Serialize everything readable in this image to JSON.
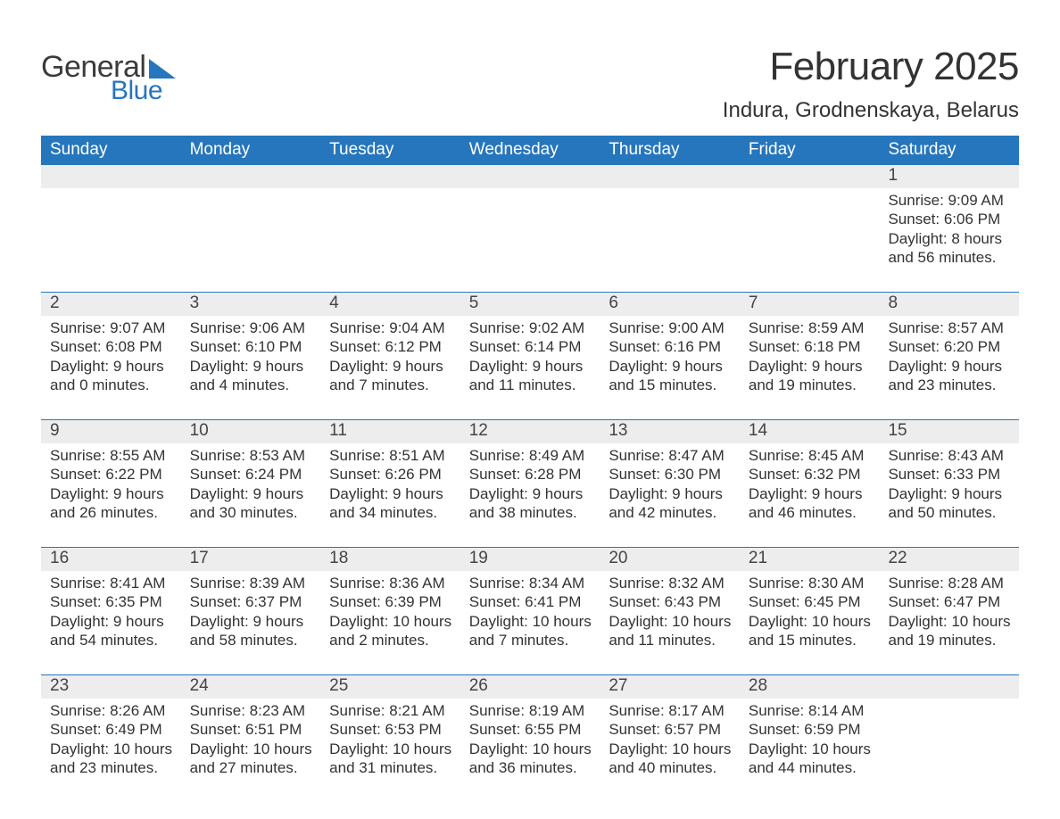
{
  "logo": {
    "text1": "General",
    "text2": "Blue",
    "accent_color": "#2676bd"
  },
  "header": {
    "month_title": "February 2025",
    "location": "Indura, Grodnenskaya, Belarus"
  },
  "colors": {
    "header_bar": "#2676bd",
    "daynum_bg": "#ededed",
    "text": "#333333",
    "background": "#ffffff"
  },
  "typography": {
    "month_title_fontsize": 44,
    "location_fontsize": 24,
    "weekday_fontsize": 19,
    "daynum_fontsize": 19,
    "detail_fontsize": 17
  },
  "weekdays": [
    "Sunday",
    "Monday",
    "Tuesday",
    "Wednesday",
    "Thursday",
    "Friday",
    "Saturday"
  ],
  "weeks": [
    [
      {
        "day": "",
        "sunrise": "",
        "sunset": "",
        "daylight": ""
      },
      {
        "day": "",
        "sunrise": "",
        "sunset": "",
        "daylight": ""
      },
      {
        "day": "",
        "sunrise": "",
        "sunset": "",
        "daylight": ""
      },
      {
        "day": "",
        "sunrise": "",
        "sunset": "",
        "daylight": ""
      },
      {
        "day": "",
        "sunrise": "",
        "sunset": "",
        "daylight": ""
      },
      {
        "day": "",
        "sunrise": "",
        "sunset": "",
        "daylight": ""
      },
      {
        "day": "1",
        "sunrise": "Sunrise: 9:09 AM",
        "sunset": "Sunset: 6:06 PM",
        "daylight": "Daylight: 8 hours and 56 minutes."
      }
    ],
    [
      {
        "day": "2",
        "sunrise": "Sunrise: 9:07 AM",
        "sunset": "Sunset: 6:08 PM",
        "daylight": "Daylight: 9 hours and 0 minutes."
      },
      {
        "day": "3",
        "sunrise": "Sunrise: 9:06 AM",
        "sunset": "Sunset: 6:10 PM",
        "daylight": "Daylight: 9 hours and 4 minutes."
      },
      {
        "day": "4",
        "sunrise": "Sunrise: 9:04 AM",
        "sunset": "Sunset: 6:12 PM",
        "daylight": "Daylight: 9 hours and 7 minutes."
      },
      {
        "day": "5",
        "sunrise": "Sunrise: 9:02 AM",
        "sunset": "Sunset: 6:14 PM",
        "daylight": "Daylight: 9 hours and 11 minutes."
      },
      {
        "day": "6",
        "sunrise": "Sunrise: 9:00 AM",
        "sunset": "Sunset: 6:16 PM",
        "daylight": "Daylight: 9 hours and 15 minutes."
      },
      {
        "day": "7",
        "sunrise": "Sunrise: 8:59 AM",
        "sunset": "Sunset: 6:18 PM",
        "daylight": "Daylight: 9 hours and 19 minutes."
      },
      {
        "day": "8",
        "sunrise": "Sunrise: 8:57 AM",
        "sunset": "Sunset: 6:20 PM",
        "daylight": "Daylight: 9 hours and 23 minutes."
      }
    ],
    [
      {
        "day": "9",
        "sunrise": "Sunrise: 8:55 AM",
        "sunset": "Sunset: 6:22 PM",
        "daylight": "Daylight: 9 hours and 26 minutes."
      },
      {
        "day": "10",
        "sunrise": "Sunrise: 8:53 AM",
        "sunset": "Sunset: 6:24 PM",
        "daylight": "Daylight: 9 hours and 30 minutes."
      },
      {
        "day": "11",
        "sunrise": "Sunrise: 8:51 AM",
        "sunset": "Sunset: 6:26 PM",
        "daylight": "Daylight: 9 hours and 34 minutes."
      },
      {
        "day": "12",
        "sunrise": "Sunrise: 8:49 AM",
        "sunset": "Sunset: 6:28 PM",
        "daylight": "Daylight: 9 hours and 38 minutes."
      },
      {
        "day": "13",
        "sunrise": "Sunrise: 8:47 AM",
        "sunset": "Sunset: 6:30 PM",
        "daylight": "Daylight: 9 hours and 42 minutes."
      },
      {
        "day": "14",
        "sunrise": "Sunrise: 8:45 AM",
        "sunset": "Sunset: 6:32 PM",
        "daylight": "Daylight: 9 hours and 46 minutes."
      },
      {
        "day": "15",
        "sunrise": "Sunrise: 8:43 AM",
        "sunset": "Sunset: 6:33 PM",
        "daylight": "Daylight: 9 hours and 50 minutes."
      }
    ],
    [
      {
        "day": "16",
        "sunrise": "Sunrise: 8:41 AM",
        "sunset": "Sunset: 6:35 PM",
        "daylight": "Daylight: 9 hours and 54 minutes."
      },
      {
        "day": "17",
        "sunrise": "Sunrise: 8:39 AM",
        "sunset": "Sunset: 6:37 PM",
        "daylight": "Daylight: 9 hours and 58 minutes."
      },
      {
        "day": "18",
        "sunrise": "Sunrise: 8:36 AM",
        "sunset": "Sunset: 6:39 PM",
        "daylight": "Daylight: 10 hours and 2 minutes."
      },
      {
        "day": "19",
        "sunrise": "Sunrise: 8:34 AM",
        "sunset": "Sunset: 6:41 PM",
        "daylight": "Daylight: 10 hours and 7 minutes."
      },
      {
        "day": "20",
        "sunrise": "Sunrise: 8:32 AM",
        "sunset": "Sunset: 6:43 PM",
        "daylight": "Daylight: 10 hours and 11 minutes."
      },
      {
        "day": "21",
        "sunrise": "Sunrise: 8:30 AM",
        "sunset": "Sunset: 6:45 PM",
        "daylight": "Daylight: 10 hours and 15 minutes."
      },
      {
        "day": "22",
        "sunrise": "Sunrise: 8:28 AM",
        "sunset": "Sunset: 6:47 PM",
        "daylight": "Daylight: 10 hours and 19 minutes."
      }
    ],
    [
      {
        "day": "23",
        "sunrise": "Sunrise: 8:26 AM",
        "sunset": "Sunset: 6:49 PM",
        "daylight": "Daylight: 10 hours and 23 minutes."
      },
      {
        "day": "24",
        "sunrise": "Sunrise: 8:23 AM",
        "sunset": "Sunset: 6:51 PM",
        "daylight": "Daylight: 10 hours and 27 minutes."
      },
      {
        "day": "25",
        "sunrise": "Sunrise: 8:21 AM",
        "sunset": "Sunset: 6:53 PM",
        "daylight": "Daylight: 10 hours and 31 minutes."
      },
      {
        "day": "26",
        "sunrise": "Sunrise: 8:19 AM",
        "sunset": "Sunset: 6:55 PM",
        "daylight": "Daylight: 10 hours and 36 minutes."
      },
      {
        "day": "27",
        "sunrise": "Sunrise: 8:17 AM",
        "sunset": "Sunset: 6:57 PM",
        "daylight": "Daylight: 10 hours and 40 minutes."
      },
      {
        "day": "28",
        "sunrise": "Sunrise: 8:14 AM",
        "sunset": "Sunset: 6:59 PM",
        "daylight": "Daylight: 10 hours and 44 minutes."
      },
      {
        "day": "",
        "sunrise": "",
        "sunset": "",
        "daylight": ""
      }
    ]
  ]
}
